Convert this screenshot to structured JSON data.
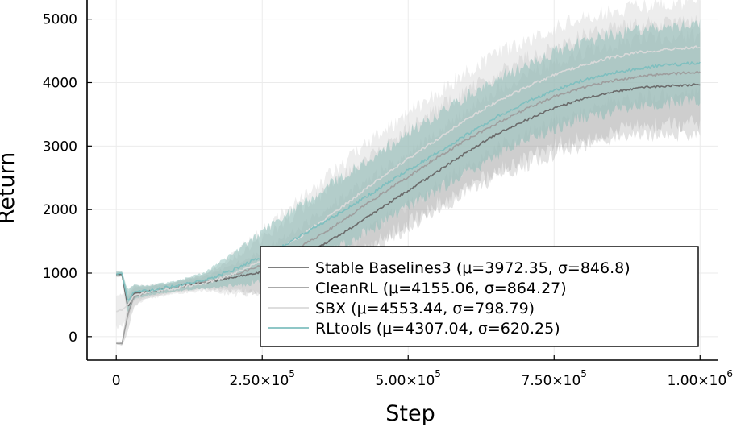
{
  "chart_data": {
    "type": "line",
    "title": "",
    "xlabel": "Step",
    "ylabel": "Return",
    "xlim": [
      -50000,
      1030000
    ],
    "ylim": [
      -370,
      5300
    ],
    "x_ticks": [
      {
        "value": 0,
        "mantissa": "0",
        "exponent": ""
      },
      {
        "value": 250000,
        "mantissa": "2.50×10",
        "exponent": "5"
      },
      {
        "value": 500000,
        "mantissa": "5.00×10",
        "exponent": "5"
      },
      {
        "value": 750000,
        "mantissa": "7.50×10",
        "exponent": "5"
      },
      {
        "value": 1000000,
        "mantissa": "1.00×10",
        "exponent": "6"
      }
    ],
    "y_ticks": [
      {
        "value": 0,
        "label": "0"
      },
      {
        "value": 1000,
        "label": "1000"
      },
      {
        "value": 2000,
        "label": "2000"
      },
      {
        "value": 3000,
        "label": "3000"
      },
      {
        "value": 4000,
        "label": "4000"
      },
      {
        "value": 5000,
        "label": "5000"
      }
    ],
    "grid": true,
    "legend_position": "bottom-right",
    "x": [
      0,
      10000,
      20000,
      30000,
      50000,
      100000,
      150000,
      200000,
      250000,
      300000,
      350000,
      400000,
      450000,
      500000,
      550000,
      600000,
      650000,
      700000,
      750000,
      800000,
      850000,
      900000,
      950000,
      1000000
    ],
    "series": [
      {
        "name": "Stable Baselines3 (μ=3972.35, σ=846.8)",
        "color": "#6b6b6b",
        "band_color": "#9e9e9e",
        "band_opacity": 0.3,
        "values": [
          980,
          980,
          450,
          680,
          700,
          780,
          850,
          930,
          1020,
          1180,
          1420,
          1700,
          2000,
          2300,
          2600,
          2900,
          3180,
          3400,
          3600,
          3750,
          3850,
          3920,
          3950,
          3970
        ],
        "spread": [
          40,
          40,
          200,
          120,
          80,
          70,
          90,
          200,
          330,
          450,
          520,
          560,
          580,
          600,
          620,
          640,
          680,
          700,
          720,
          730,
          740,
          750,
          760,
          770
        ]
      },
      {
        "name": "CleanRL (μ=4155.06, σ=864.27)",
        "color": "#9e9e9e",
        "band_color": "#a8a8a8",
        "band_opacity": 0.35,
        "values": [
          -100,
          -110,
          350,
          620,
          690,
          780,
          860,
          970,
          1120,
          1330,
          1600,
          1900,
          2220,
          2520,
          2820,
          3100,
          3350,
          3580,
          3780,
          3920,
          4030,
          4100,
          4140,
          4160
        ],
        "spread": [
          20,
          30,
          250,
          150,
          90,
          80,
          110,
          260,
          420,
          560,
          650,
          700,
          720,
          740,
          750,
          760,
          770,
          780,
          790,
          800,
          800,
          800,
          800,
          800
        ]
      },
      {
        "name": "SBX (μ=4553.44, σ=798.79)",
        "color": "#d9d9d9",
        "band_color": "#dcdcdc",
        "band_opacity": 0.5,
        "values": [
          400,
          420,
          500,
          650,
          700,
          760,
          840,
          980,
          1200,
          1480,
          1800,
          2130,
          2480,
          2800,
          3110,
          3420,
          3690,
          3920,
          4120,
          4280,
          4400,
          4480,
          4530,
          4560
        ],
        "spread": [
          250,
          260,
          220,
          160,
          110,
          90,
          120,
          320,
          480,
          580,
          640,
          680,
          700,
          720,
          730,
          740,
          740,
          740,
          740,
          740,
          730,
          720,
          720,
          720
        ]
      },
      {
        "name": "RLtools (μ=4307.04, σ=620.25)",
        "color": "#7fbfbf",
        "band_color": "#7fb8b2",
        "band_opacity": 0.45,
        "values": [
          990,
          990,
          550,
          700,
          720,
          790,
          880,
          1050,
          1260,
          1500,
          1770,
          2040,
          2330,
          2620,
          2900,
          3180,
          3450,
          3680,
          3880,
          4040,
          4150,
          4230,
          4280,
          4310
        ],
        "spread": [
          30,
          40,
          180,
          110,
          80,
          80,
          120,
          260,
          380,
          470,
          520,
          550,
          570,
          580,
          590,
          600,
          600,
          600,
          600,
          600,
          600,
          600,
          600,
          600
        ]
      }
    ]
  }
}
